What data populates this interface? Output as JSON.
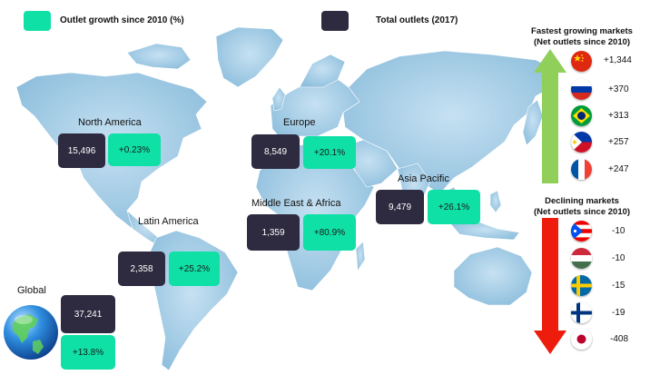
{
  "colors": {
    "dark_box": "#2e2a3f",
    "green_box": "#0fe0a6",
    "map_fill": "#a9cde6",
    "growth_arrow": "#8fcf5a",
    "decline_arrow": "#ee1c0c"
  },
  "legend": {
    "growth_label": "Outlet growth since 2010 (%)",
    "total_label": "Total outlets (2017)"
  },
  "regions": {
    "north_america": {
      "name": "North America",
      "total": "15,496",
      "growth": "+0.23%"
    },
    "europe": {
      "name": "Europe",
      "total": "8,549",
      "growth": "+20.1%"
    },
    "asia_pacific": {
      "name": "Asia Pacific",
      "total": "9,479",
      "growth": "+26.1%"
    },
    "middle_east_africa": {
      "name": "Middle East & Africa",
      "total": "1,359",
      "growth": "+80.9%"
    },
    "latin_america": {
      "name": "Latin America",
      "total": "2,358",
      "growth": "+25.2%"
    },
    "global": {
      "name": "Global",
      "total": "37,241",
      "growth": "+13.8%",
      "icon": "globe-icon"
    }
  },
  "fastest": {
    "title_line1": "Fastest growing markets",
    "title_line2": "(Net outlets since 2010)",
    "markets": [
      {
        "flag": "china-flag-icon",
        "value": "+1,344"
      },
      {
        "flag": "russia-flag-icon",
        "value": "+370"
      },
      {
        "flag": "brazil-flag-icon",
        "value": "+313"
      },
      {
        "flag": "philippines-flag-icon",
        "value": "+257"
      },
      {
        "flag": "france-flag-icon",
        "value": "+247"
      }
    ]
  },
  "declining": {
    "title_line1": "Declining markets",
    "title_line2": "(Net outlets since 2010)",
    "markets": [
      {
        "flag": "puerto-rico-flag-icon",
        "value": "-10"
      },
      {
        "flag": "hungary-flag-icon",
        "value": "-10"
      },
      {
        "flag": "sweden-flag-icon",
        "value": "-15"
      },
      {
        "flag": "finland-flag-icon",
        "value": "-19"
      },
      {
        "flag": "japan-flag-icon",
        "value": "-408"
      }
    ]
  }
}
